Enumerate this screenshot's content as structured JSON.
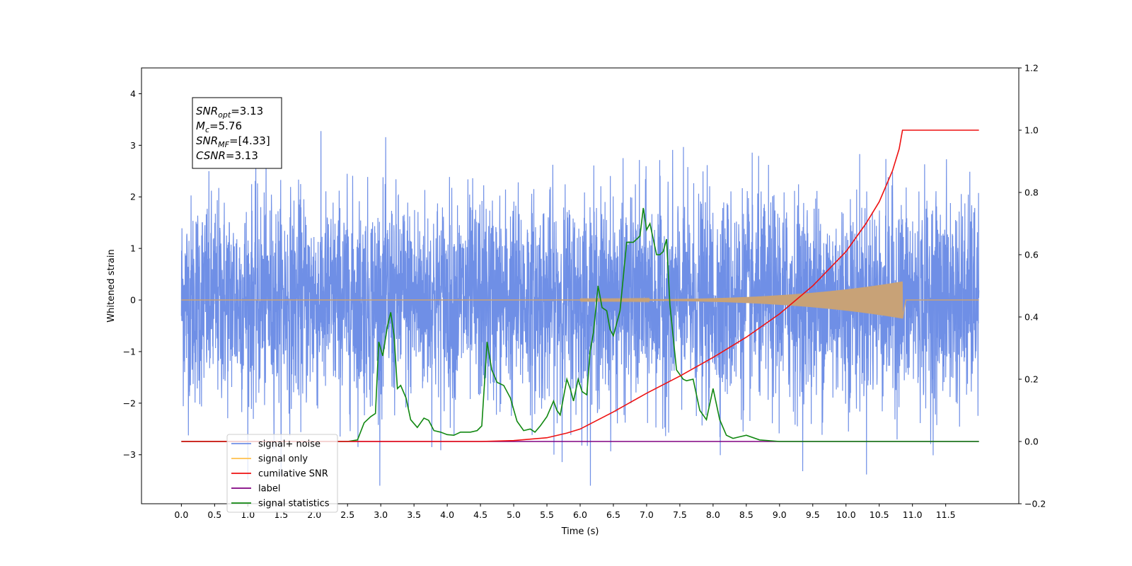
{
  "chart_data": {
    "type": "line",
    "xlabel": "Time (s)",
    "ylabel_left": "Whitened strain",
    "xlim": [
      -0.6,
      12.6
    ],
    "ylim_left": [
      -3.95,
      4.5
    ],
    "ylim_right": [
      -0.2,
      1.2
    ],
    "x_ticks": [
      "0.0",
      "0.5",
      "1.0",
      "1.5",
      "2.0",
      "2.5",
      "3.0",
      "3.5",
      "4.0",
      "4.5",
      "5.0",
      "5.5",
      "6.0",
      "6.5",
      "7.0",
      "7.5",
      "8.0",
      "8.5",
      "9.0",
      "9.5",
      "10.0",
      "10.5",
      "11.0",
      "11.5"
    ],
    "y_ticks_left": [
      "4",
      "3",
      "2",
      "1",
      "0",
      "−1",
      "−2",
      "−3"
    ],
    "y_ticks_right": [
      "1.2",
      "1.0",
      "0.8",
      "0.6",
      "0.4",
      "0.2",
      "0.0",
      "−0.2"
    ],
    "annotation": {
      "lines": [
        {
          "sym": "SNR",
          "sub": "opt",
          "value": "=3.13"
        },
        {
          "sym": "M",
          "sub": "c",
          "value": "=5.76"
        },
        {
          "sym": "SNR",
          "sub": "MF",
          "value": "=[4.33]"
        },
        {
          "sym": "CSNR",
          "sub": "",
          "value": "=3.13"
        }
      ]
    },
    "legend": {
      "placement": "lower-left",
      "entries": [
        {
          "label": "signal+ noise",
          "color": "#6f8fe6"
        },
        {
          "label": "signal only",
          "color": "#ffc04d"
        },
        {
          "label": "cumilative SNR",
          "color": "#ee1111"
        },
        {
          "label": "label",
          "color": "#800080"
        },
        {
          "label": "signal statistics",
          "color": "#118811"
        }
      ]
    },
    "series": [
      {
        "name": "signal+ noise",
        "axis": "left",
        "color": "#6f8fe6",
        "t_range": [
          0.0,
          12.0
        ],
        "envelope_sigma": 1.0,
        "spike_max": 4.1
      },
      {
        "name": "signal only",
        "axis": "left",
        "color": "#c8a277",
        "chirp": {
          "t_start": 6.0,
          "t_merge": 10.85,
          "peak_amplitude": 0.35
        }
      },
      {
        "name": "cumilative SNR",
        "axis": "right",
        "color": "#ee1111",
        "x": [
          0.0,
          2.5,
          4.5,
          5.0,
          5.5,
          5.8,
          6.0,
          6.5,
          7.0,
          7.5,
          8.0,
          8.5,
          9.0,
          9.5,
          10.0,
          10.3,
          10.5,
          10.7,
          10.8,
          10.85,
          12.0
        ],
        "y": [
          0.0,
          0.0,
          0.0,
          0.003,
          0.012,
          0.027,
          0.04,
          0.095,
          0.155,
          0.21,
          0.27,
          0.335,
          0.41,
          0.5,
          0.61,
          0.7,
          0.77,
          0.87,
          0.94,
          1.0,
          1.0
        ]
      },
      {
        "name": "label",
        "axis": "right",
        "color": "#800080",
        "x": [
          0.0,
          12.0
        ],
        "y": [
          0.0,
          0.0
        ]
      },
      {
        "name": "signal statistics",
        "axis": "right",
        "color": "#118811",
        "x": [
          0.0,
          2.5,
          2.65,
          2.75,
          2.85,
          2.92,
          2.97,
          3.03,
          3.1,
          3.15,
          3.2,
          3.25,
          3.3,
          3.38,
          3.45,
          3.55,
          3.65,
          3.72,
          3.8,
          3.9,
          4.0,
          4.1,
          4.2,
          4.35,
          4.45,
          4.52,
          4.6,
          4.67,
          4.75,
          4.85,
          4.95,
          5.05,
          5.15,
          5.25,
          5.32,
          5.4,
          5.5,
          5.6,
          5.65,
          5.7,
          5.8,
          5.85,
          5.9,
          5.97,
          6.03,
          6.1,
          6.15,
          6.2,
          6.27,
          6.33,
          6.4,
          6.45,
          6.5,
          6.6,
          6.7,
          6.8,
          6.9,
          6.95,
          7.0,
          7.05,
          7.1,
          7.15,
          7.2,
          7.25,
          7.3,
          7.35,
          7.45,
          7.55,
          7.6,
          7.7,
          7.8,
          7.9,
          8.0,
          8.05,
          8.1,
          8.2,
          8.3,
          8.4,
          8.5,
          8.7,
          9.0,
          12.0
        ],
        "y": [
          0.0,
          0.0,
          0.005,
          0.06,
          0.08,
          0.09,
          0.32,
          0.275,
          0.37,
          0.415,
          0.34,
          0.17,
          0.18,
          0.14,
          0.07,
          0.045,
          0.075,
          0.068,
          0.035,
          0.03,
          0.022,
          0.02,
          0.03,
          0.03,
          0.035,
          0.05,
          0.32,
          0.23,
          0.19,
          0.18,
          0.14,
          0.065,
          0.035,
          0.04,
          0.03,
          0.05,
          0.08,
          0.13,
          0.1,
          0.085,
          0.2,
          0.17,
          0.13,
          0.2,
          0.16,
          0.15,
          0.29,
          0.35,
          0.5,
          0.43,
          0.42,
          0.36,
          0.34,
          0.42,
          0.64,
          0.64,
          0.66,
          0.75,
          0.68,
          0.7,
          0.65,
          0.6,
          0.6,
          0.61,
          0.65,
          0.44,
          0.23,
          0.2,
          0.195,
          0.2,
          0.1,
          0.07,
          0.17,
          0.12,
          0.07,
          0.02,
          0.01,
          0.015,
          0.02,
          0.005,
          0.0,
          0.0
        ]
      }
    ]
  }
}
